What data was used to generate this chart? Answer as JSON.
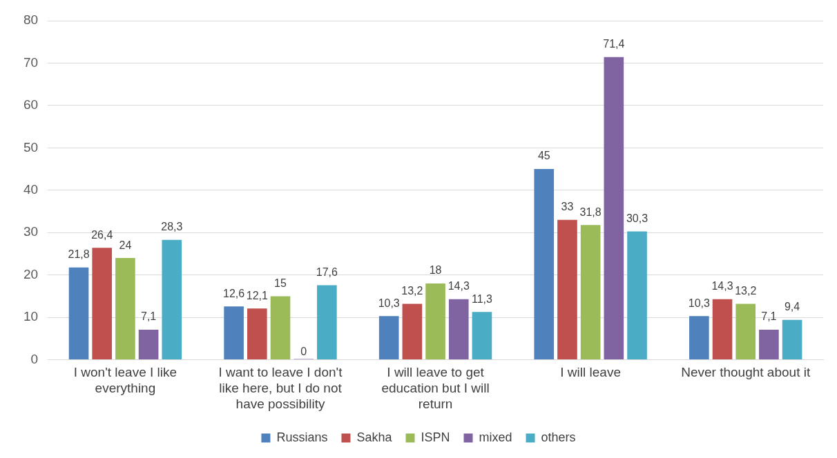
{
  "chart_data": {
    "type": "bar",
    "categories": [
      "I won't leave I like everything",
      "I want to leave I don't like here, but I do not have possibility",
      "I will leave to get education but I will return",
      "I will leave",
      "Never thought about it"
    ],
    "series": [
      {
        "name": "Russians",
        "color": "#4f81bd",
        "values": [
          21.8,
          12.6,
          10.3,
          45,
          10.3
        ],
        "value_labels": [
          "21,8",
          "12,6",
          "10,3",
          "45",
          "10,3"
        ]
      },
      {
        "name": "Sakha",
        "color": "#c0504d",
        "values": [
          26.4,
          12.1,
          13.2,
          33,
          14.3
        ],
        "value_labels": [
          "26,4",
          "12,1",
          "13,2",
          "33",
          "14,3"
        ]
      },
      {
        "name": "ISPN",
        "color": "#9bbb59",
        "values": [
          24,
          15,
          18,
          31.8,
          13.2
        ],
        "value_labels": [
          "24",
          "15",
          "18",
          "31,8",
          "13,2"
        ]
      },
      {
        "name": "mixed",
        "color": "#8064a2",
        "values": [
          7.1,
          0,
          14.3,
          71.4,
          7.1
        ],
        "value_labels": [
          "7,1",
          "0",
          "14,3",
          "71,4",
          "7,1"
        ]
      },
      {
        "name": "others",
        "color": "#4bacc6",
        "values": [
          28.3,
          17.6,
          11.3,
          30.3,
          9.4
        ],
        "value_labels": [
          "28,3",
          "17,6",
          "11,3",
          "30,3",
          "9,4"
        ]
      }
    ],
    "ylim": [
      0,
      80
    ],
    "yticks": [
      0,
      10,
      20,
      30,
      40,
      50,
      60,
      70,
      80
    ],
    "grid": "y",
    "legend": "bottom"
  }
}
